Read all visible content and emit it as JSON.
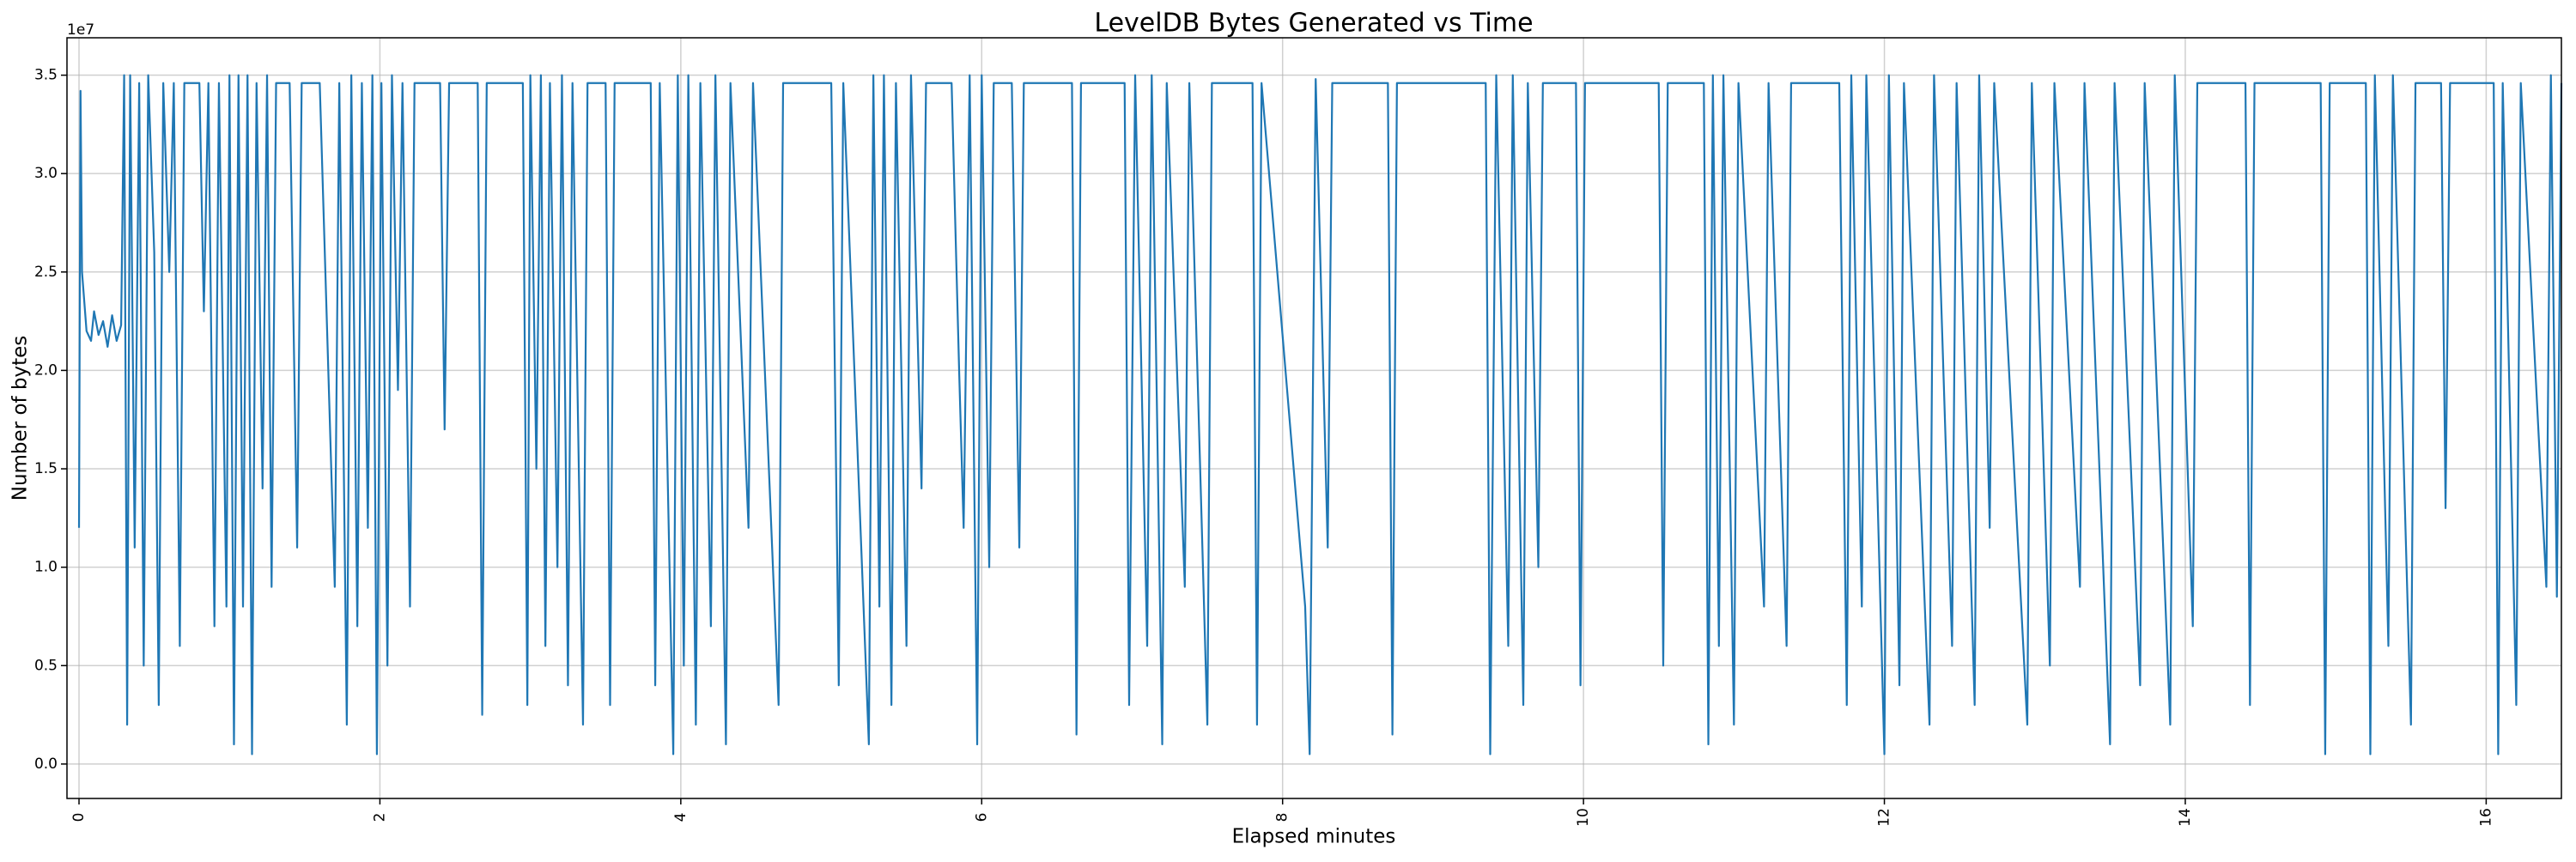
{
  "chart_data": {
    "type": "line",
    "title": "LevelDB Bytes Generated vs Time",
    "x_label": "Elapsed minutes",
    "y_label": "Number of bytes",
    "y_offset_label": "1e7",
    "color": "#1f77b4",
    "grid": true,
    "xlim": [
      -0.08,
      16.5
    ],
    "ylim": [
      -1750000,
      36900000
    ],
    "xticks": [
      0,
      2,
      4,
      6,
      8,
      10,
      12,
      14,
      16
    ],
    "yticks": [
      {
        "value": 0,
        "label": "0.0"
      },
      {
        "value": 5000000,
        "label": "0.5"
      },
      {
        "value": 10000000,
        "label": "1.0"
      },
      {
        "value": 15000000,
        "label": "1.5"
      },
      {
        "value": 20000000,
        "label": "2.0"
      },
      {
        "value": 25000000,
        "label": "2.5"
      },
      {
        "value": 30000000,
        "label": "3.0"
      },
      {
        "value": 35000000,
        "label": "3.5"
      }
    ],
    "x": [
      0.0,
      0.01,
      0.02,
      0.05,
      0.08,
      0.1,
      0.13,
      0.16,
      0.19,
      0.22,
      0.25,
      0.28,
      0.3,
      0.32,
      0.34,
      0.37,
      0.4,
      0.43,
      0.46,
      0.5,
      0.53,
      0.56,
      0.6,
      0.63,
      0.67,
      0.7,
      0.8,
      0.83,
      0.86,
      0.9,
      0.93,
      0.98,
      1.0,
      1.03,
      1.06,
      1.09,
      1.12,
      1.15,
      1.18,
      1.22,
      1.25,
      1.28,
      1.31,
      1.4,
      1.45,
      1.48,
      1.6,
      1.7,
      1.73,
      1.78,
      1.81,
      1.85,
      1.88,
      1.92,
      1.95,
      1.98,
      2.01,
      2.05,
      2.08,
      2.12,
      2.15,
      2.2,
      2.23,
      2.4,
      2.43,
      2.46,
      2.65,
      2.68,
      2.71,
      2.95,
      2.98,
      3.0,
      3.04,
      3.07,
      3.1,
      3.13,
      3.18,
      3.21,
      3.25,
      3.28,
      3.35,
      3.38,
      3.5,
      3.53,
      3.56,
      3.8,
      3.83,
      3.86,
      3.95,
      3.98,
      4.02,
      4.05,
      4.1,
      4.13,
      4.2,
      4.23,
      4.3,
      4.33,
      4.45,
      4.48,
      4.65,
      4.68,
      5.0,
      5.05,
      5.08,
      5.25,
      5.28,
      5.32,
      5.35,
      5.4,
      5.43,
      5.5,
      5.53,
      5.6,
      5.63,
      5.8,
      5.85,
      5.88,
      5.92,
      5.97,
      6.0,
      6.05,
      6.08,
      6.2,
      6.25,
      6.28,
      6.6,
      6.63,
      6.66,
      6.95,
      6.98,
      7.02,
      7.1,
      7.13,
      7.2,
      7.23,
      7.35,
      7.38,
      7.5,
      7.53,
      7.8,
      7.83,
      7.86,
      8.15,
      8.18,
      8.22,
      8.3,
      8.33,
      8.7,
      8.73,
      8.76,
      9.35,
      9.38,
      9.42,
      9.5,
      9.53,
      9.6,
      9.63,
      9.7,
      9.73,
      9.95,
      9.98,
      10.01,
      10.5,
      10.53,
      10.56,
      10.8,
      10.83,
      10.86,
      10.9,
      10.93,
      11.0,
      11.03,
      11.2,
      11.23,
      11.35,
      11.38,
      11.7,
      11.75,
      11.78,
      11.85,
      11.88,
      12.0,
      12.03,
      12.1,
      12.13,
      12.3,
      12.33,
      12.45,
      12.48,
      12.6,
      12.63,
      12.7,
      12.73,
      12.95,
      12.98,
      13.1,
      13.13,
      13.3,
      13.33,
      13.5,
      13.53,
      13.7,
      13.73,
      13.9,
      13.93,
      14.05,
      14.08,
      14.4,
      14.43,
      14.46,
      14.9,
      14.93,
      14.96,
      15.2,
      15.23,
      15.26,
      15.35,
      15.38,
      15.5,
      15.53,
      15.7,
      15.73,
      15.76,
      16.05,
      16.08,
      16.11,
      16.2,
      16.23,
      16.4,
      16.43,
      16.47,
      16.5
    ],
    "values": [
      12000000,
      34200000,
      25000000,
      22000000,
      21500000,
      23000000,
      21800000,
      22500000,
      21200000,
      22800000,
      21500000,
      22300000,
      35000000,
      2000000,
      35000000,
      11000000,
      34600000,
      5000000,
      35000000,
      26000000,
      3000000,
      34600000,
      25000000,
      34600000,
      6000000,
      34600000,
      34600000,
      23000000,
      34600000,
      7000000,
      34600000,
      8000000,
      35000000,
      1000000,
      35000000,
      8000000,
      35000000,
      500000,
      34600000,
      14000000,
      35000000,
      9000000,
      34600000,
      34600000,
      11000000,
      34600000,
      34600000,
      9000000,
      34600000,
      2000000,
      35000000,
      7000000,
      34600000,
      12000000,
      35000000,
      500000,
      34600000,
      5000000,
      35000000,
      19000000,
      34600000,
      8000000,
      34600000,
      34600000,
      17000000,
      34600000,
      34600000,
      2500000,
      34600000,
      34600000,
      3000000,
      35000000,
      15000000,
      35000000,
      6000000,
      34600000,
      10000000,
      35000000,
      4000000,
      34600000,
      2000000,
      34600000,
      34600000,
      3000000,
      34600000,
      34600000,
      4000000,
      34600000,
      500000,
      35000000,
      5000000,
      35000000,
      2000000,
      34600000,
      7000000,
      35000000,
      1000000,
      34600000,
      12000000,
      34600000,
      3000000,
      34600000,
      34600000,
      4000000,
      34600000,
      1000000,
      35000000,
      8000000,
      35000000,
      3000000,
      34600000,
      6000000,
      35000000,
      14000000,
      34600000,
      34600000,
      20000000,
      12000000,
      35000000,
      1000000,
      35000000,
      10000000,
      34600000,
      34600000,
      11000000,
      34600000,
      34600000,
      1500000,
      34600000,
      34600000,
      3000000,
      35000000,
      6000000,
      35000000,
      1000000,
      34600000,
      9000000,
      34600000,
      2000000,
      34600000,
      34600000,
      2000000,
      34600000,
      8000000,
      500000,
      34800000,
      11000000,
      34600000,
      34600000,
      1500000,
      34600000,
      34600000,
      500000,
      35000000,
      6000000,
      35000000,
      3000000,
      34600000,
      10000000,
      34600000,
      34600000,
      4000000,
      34600000,
      34600000,
      5000000,
      34600000,
      34600000,
      1000000,
      35000000,
      6000000,
      35000000,
      2000000,
      34600000,
      8000000,
      34600000,
      6000000,
      34600000,
      34600000,
      3000000,
      35000000,
      8000000,
      35000000,
      500000,
      35000000,
      4000000,
      34600000,
      2000000,
      35000000,
      6000000,
      34600000,
      3000000,
      35000000,
      12000000,
      34600000,
      2000000,
      34600000,
      5000000,
      34600000,
      9000000,
      34600000,
      1000000,
      34600000,
      4000000,
      34600000,
      2000000,
      35000000,
      7000000,
      34600000,
      34600000,
      3000000,
      34600000,
      34600000,
      500000,
      34600000,
      34600000,
      500000,
      35000000,
      6000000,
      35000000,
      2000000,
      34600000,
      34600000,
      13000000,
      34600000,
      34600000,
      500000,
      34600000,
      3000000,
      34600000,
      9000000,
      35000000,
      8500000,
      34600000
    ]
  }
}
